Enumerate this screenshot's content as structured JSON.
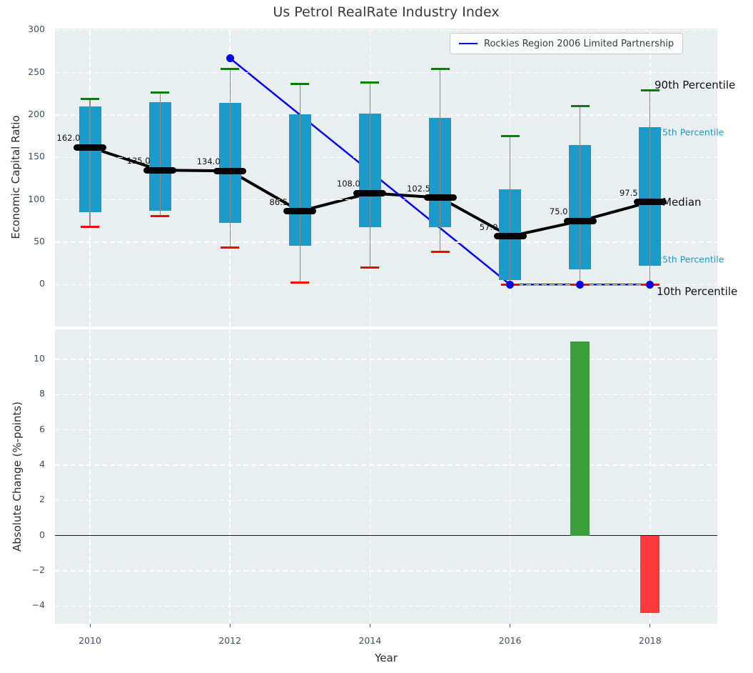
{
  "figure": {
    "title": "Us Petrol RealRate Industry Index"
  },
  "legend": {
    "label": "Rockies Region 2006 Limited Partnership",
    "line_color": "#0000f0"
  },
  "annotations": {
    "p90": {
      "label": "90th Percentile",
      "color": "#111111",
      "size": 15
    },
    "q75": {
      "label": "75th Percentile",
      "color": "#1b9bc9",
      "size": 12.5
    },
    "median": {
      "label": "Median",
      "color": "#111111",
      "size": 15
    },
    "q25": {
      "label": "25th Percentile",
      "color": "#1b9bc9",
      "size": 12.5
    },
    "p10": {
      "label": "10th Percentile",
      "color": "#111111",
      "size": 15
    }
  },
  "colors": {
    "box": "#1b9bc9",
    "cap_high": "#008000",
    "cap_low": "#fe0000",
    "whisker": "#8a8a8a",
    "median": "#000000",
    "company_line": "#0000f0",
    "panel_bg": "#e9eef0",
    "grid": "#ffffff",
    "tick_text": "#3d4f63"
  },
  "chart_data": [
    {
      "type": "box-percentile-with-line",
      "title": "Us Petrol RealRate Industry Index",
      "ylabel": "Economic Capital Ratio",
      "x": [
        2010,
        2011,
        2012,
        2013,
        2014,
        2015,
        2016,
        2017,
        2018
      ],
      "series": [
        {
          "name": "90th Percentile",
          "values": [
            219,
            227,
            254,
            237,
            238,
            254,
            175,
            211,
            229
          ]
        },
        {
          "name": "75th Percentile",
          "values": [
            210,
            215,
            214,
            201,
            202,
            197,
            112,
            165,
            186
          ]
        },
        {
          "name": "Median",
          "values": [
            162.0,
            135.0,
            134.0,
            86.5,
            108.0,
            102.5,
            57.0,
            75.0,
            97.5
          ]
        },
        {
          "name": "25th Percentile",
          "values": [
            85,
            87,
            73,
            46,
            68,
            68,
            5,
            18,
            22
          ]
        },
        {
          "name": "10th Percentile",
          "values": [
            68,
            81,
            44,
            2,
            20,
            39,
            0,
            0,
            0
          ]
        }
      ],
      "median_labels": [
        "162.0",
        "135.0",
        "134.0",
        "86.5",
        "108.0",
        "102.5",
        "57.0",
        "75.0",
        "97.5"
      ],
      "company_line": {
        "name": "Rockies Region 2006 Limited Partnership",
        "x": [
          2012,
          2016,
          2017,
          2018
        ],
        "y": [
          267,
          0,
          0,
          0
        ]
      },
      "ylim": [
        -49.5,
        302
      ],
      "xlim": [
        2009.5,
        2018.96
      ],
      "yticks": [
        0,
        50,
        100,
        150,
        200,
        250,
        300
      ],
      "xticks": [
        2010,
        2012,
        2014,
        2016,
        2018
      ],
      "grid": true,
      "legend_position": "upper right"
    },
    {
      "type": "bar",
      "ylabel": "Absolute Change (%-points)",
      "xlabel": "Year",
      "x": [
        2017,
        2018
      ],
      "values": [
        11.0,
        -4.4
      ],
      "bar_colors": [
        "#3a9e3a",
        "#fc3939"
      ],
      "ylim": [
        -5.0,
        11.7
      ],
      "xlim": [
        2009.5,
        2018.96
      ],
      "yticks": [
        10,
        8,
        6,
        4,
        2,
        0,
        -2,
        -4
      ],
      "ytick_labels": [
        "10",
        "8",
        "6",
        "4",
        "2",
        "0",
        "−2",
        "−4"
      ],
      "xticks": [
        2010,
        2012,
        2014,
        2016,
        2018
      ],
      "xtick_labels": [
        "2010",
        "2012",
        "2014",
        "2016",
        "2018"
      ],
      "grid": true,
      "zero_line": true
    }
  ]
}
